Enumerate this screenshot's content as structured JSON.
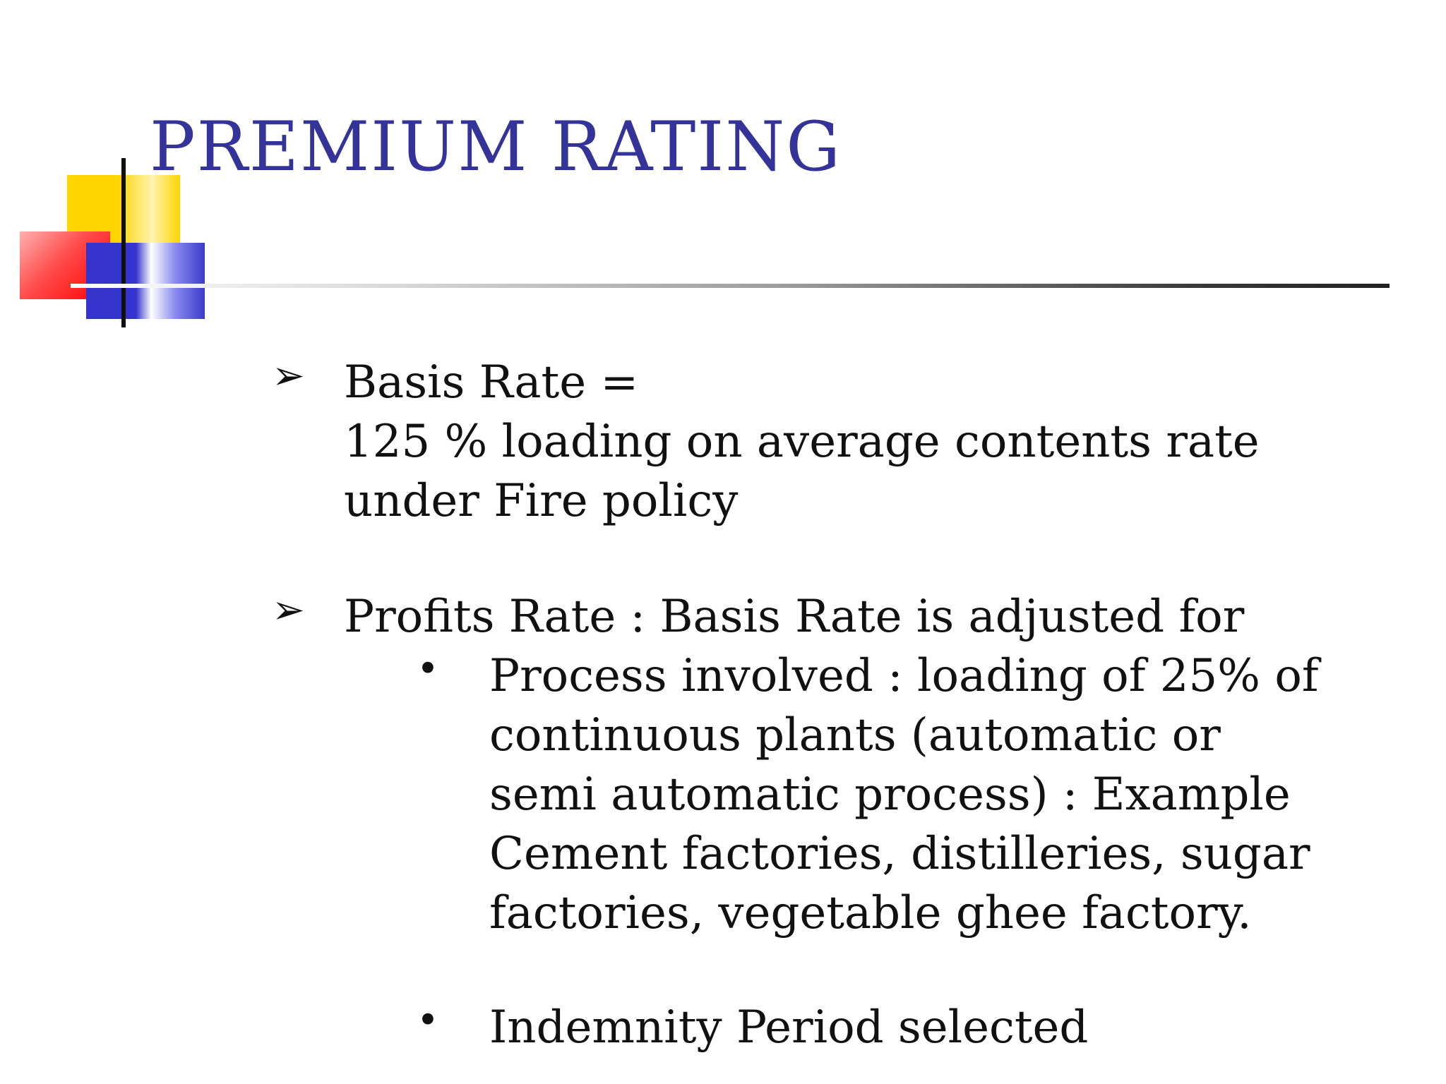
{
  "slide": {
    "title": "PREMIUM RATING",
    "bullets": [
      {
        "marker_icon": "arrowhead-bullet-icon",
        "lines": [
          "Basis Rate  =",
          "125 % loading on average contents rate",
          "under Fire policy"
        ]
      },
      {
        "marker_icon": "arrowhead-bullet-icon",
        "lines": [
          "Profits Rate : Basis Rate is adjusted for"
        ],
        "sub_bullets": [
          {
            "marker_icon": "dot-bullet-icon",
            "lines": [
              "Process involved : loading of 25% of",
              "continuous plants (automatic or",
              "semi automatic process) : Example",
              "Cement factories, distilleries, sugar",
              "factories, vegetable ghee factory."
            ]
          },
          {
            "marker_icon": "dot-bullet-icon",
            "lines": [
              "Indemnity Period selected"
            ]
          }
        ]
      }
    ]
  },
  "colors": {
    "title": "#333399",
    "text": "#111111",
    "deco_yellow": "#ffd400",
    "deco_red": "#ff0000",
    "deco_blue": "#3434cc"
  }
}
